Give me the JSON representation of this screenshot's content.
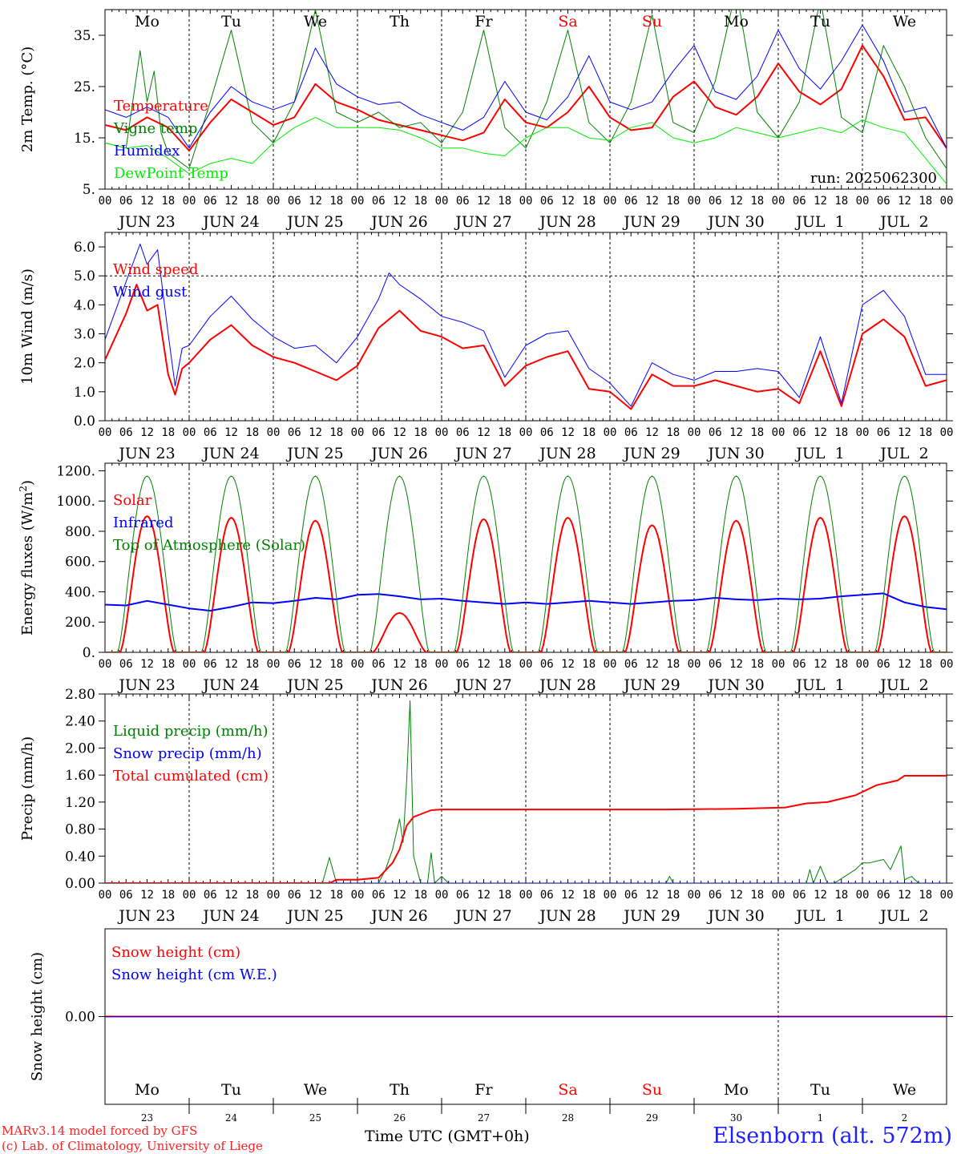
{
  "colors": {
    "red": "#ff0000",
    "blue": "#0000ff",
    "green": "#008000",
    "lime": "#00ee00",
    "grid": "#000000",
    "weekend": "#ff0000"
  },
  "days": {
    "names": [
      "Mo",
      "Tu",
      "We",
      "Th",
      "Fr",
      "Sa",
      "Su",
      "Mo",
      "Tu",
      "We"
    ],
    "dates": [
      "JUN 23",
      "JUN 24",
      "JUN 25",
      "JUN 26",
      "JUN 27",
      "JUN 28",
      "JUN 29",
      "JUN 30",
      "JUL  1",
      "JUL  2"
    ],
    "nums": [
      "23",
      "24",
      "25",
      "26",
      "27",
      "28",
      "29",
      "30",
      "1",
      "2"
    ],
    "weekend_idx": [
      5,
      6
    ],
    "hours": [
      "00",
      "06",
      "12",
      "18"
    ],
    "last_hour": "00"
  },
  "footer": {
    "model": "MARv3.14 model forced by GFS",
    "lab": "(c) Lab. of Climatology, University of Liege",
    "axis_title": "Time UTC (GMT+0h)",
    "station": "Elsenborn (alt. 572m)"
  },
  "chart_data": [
    {
      "type": "line",
      "ylabel": "2m Temp. (°C)",
      "ylim": [
        5,
        40
      ],
      "yticks": [
        5,
        15,
        25,
        35
      ],
      "ytick_labels": [
        "5.",
        "15.",
        "25.",
        "35."
      ],
      "annotation": "run: 2025062300",
      "series": [
        {
          "name": "Temperature",
          "color": "red",
          "width": 2,
          "x": [
            0,
            6,
            12,
            18,
            24,
            30,
            36,
            42,
            48,
            54,
            60,
            66,
            72,
            78,
            84,
            90,
            96,
            102,
            108,
            114,
            120,
            126,
            132,
            138,
            144,
            150,
            156,
            162,
            168,
            174,
            180,
            186,
            192,
            198,
            204,
            210,
            216,
            222,
            228,
            234,
            240
          ],
          "values": [
            17.5,
            16.5,
            19,
            17,
            12.5,
            18,
            22.5,
            20,
            17.5,
            19,
            25.5,
            22,
            20.5,
            18.5,
            17.5,
            16.5,
            15.5,
            14.5,
            16,
            22.5,
            18,
            17,
            20,
            25,
            19,
            16.5,
            17,
            23,
            26,
            21,
            19.5,
            23,
            29.5,
            24,
            21.5,
            24.5,
            33,
            27,
            18.5,
            19,
            13
          ]
        },
        {
          "name": "Vigne temp",
          "color": "green",
          "width": 1,
          "x": [
            0,
            6,
            10,
            12,
            14,
            16,
            18,
            24,
            30,
            36,
            42,
            48,
            54,
            60,
            66,
            72,
            78,
            84,
            90,
            96,
            102,
            108,
            114,
            120,
            126,
            132,
            138,
            144,
            150,
            156,
            162,
            168,
            174,
            180,
            186,
            192,
            198,
            204,
            210,
            216,
            222,
            228,
            234,
            240
          ],
          "values": [
            14,
            13,
            32,
            22,
            28,
            16,
            12,
            9,
            22,
            36,
            18,
            14,
            22,
            40,
            20,
            18,
            20,
            17,
            18,
            14,
            20,
            36,
            17,
            13,
            22,
            36,
            18,
            14,
            22,
            39,
            18,
            16,
            26,
            44,
            20,
            15,
            22,
            42,
            19,
            16,
            33,
            25,
            15,
            9
          ]
        },
        {
          "name": "Humidex",
          "color": "blue",
          "width": 1,
          "x": [
            0,
            6,
            12,
            18,
            24,
            30,
            36,
            42,
            48,
            54,
            60,
            66,
            72,
            78,
            84,
            90,
            96,
            102,
            108,
            114,
            120,
            126,
            132,
            138,
            144,
            150,
            156,
            162,
            168,
            174,
            180,
            186,
            192,
            198,
            204,
            210,
            216,
            222,
            228,
            234,
            240
          ],
          "values": [
            20.5,
            19,
            21,
            19,
            13,
            20,
            25,
            22,
            20.5,
            22,
            32.5,
            25.5,
            23,
            21.5,
            22,
            19.5,
            18,
            16.5,
            19,
            26,
            20,
            18.5,
            23,
            31,
            22,
            20.5,
            22,
            28,
            33,
            24,
            22.5,
            27,
            36,
            28.5,
            24.5,
            30,
            37,
            30,
            20,
            21,
            13
          ]
        },
        {
          "name": "DewPoint Temp",
          "color": "lime",
          "width": 1,
          "x": [
            0,
            6,
            12,
            18,
            24,
            30,
            36,
            42,
            48,
            54,
            60,
            66,
            72,
            78,
            84,
            90,
            96,
            102,
            108,
            114,
            120,
            126,
            132,
            138,
            144,
            150,
            156,
            162,
            168,
            174,
            180,
            186,
            192,
            198,
            204,
            210,
            216,
            222,
            228,
            234,
            240
          ],
          "values": [
            14,
            13,
            13.5,
            11,
            8,
            10,
            11,
            10,
            14,
            17,
            19,
            17,
            17,
            17,
            16.5,
            15,
            13,
            13,
            12,
            11.5,
            15,
            17,
            17,
            15,
            14.5,
            17,
            18,
            15,
            14,
            15,
            17,
            16,
            15,
            16,
            17,
            16,
            18.5,
            17,
            16,
            11,
            6
          ]
        }
      ]
    },
    {
      "type": "line",
      "ylabel": "10m Wind (m/s)",
      "ylim": [
        0,
        6.5
      ],
      "yticks": [
        0,
        1,
        2,
        3,
        4,
        5,
        6
      ],
      "ytick_labels": [
        "0.0",
        "1.0",
        "2.0",
        "3.0",
        "4.0",
        "5.0",
        "6.0"
      ],
      "hline": 5.0,
      "series": [
        {
          "name": "Wind speed",
          "color": "red",
          "width": 2,
          "x": [
            0,
            6,
            9,
            12,
            15,
            18,
            20,
            22,
            24,
            30,
            36,
            42,
            48,
            54,
            60,
            66,
            72,
            78,
            84,
            90,
            96,
            102,
            108,
            114,
            120,
            126,
            132,
            138,
            144,
            150,
            156,
            162,
            168,
            174,
            180,
            186,
            192,
            198,
            204,
            210,
            216,
            222,
            228,
            234,
            240
          ],
          "values": [
            2.1,
            3.7,
            4.7,
            3.8,
            4,
            1.6,
            0.9,
            1.8,
            2.0,
            2.8,
            3.3,
            2.6,
            2.2,
            2.0,
            1.7,
            1.4,
            1.9,
            3.2,
            3.8,
            3.1,
            2.9,
            2.5,
            2.6,
            1.2,
            1.9,
            2.2,
            2.4,
            1.1,
            1.0,
            0.4,
            1.6,
            1.2,
            1.2,
            1.4,
            1.2,
            1.0,
            1.1,
            0.6,
            2.4,
            0.5,
            3.0,
            3.5,
            2.9,
            1.2,
            1.4
          ]
        },
        {
          "name": "Wind gust",
          "color": "blue",
          "width": 1,
          "x": [
            0,
            6,
            10,
            12,
            15,
            18,
            20,
            22,
            24,
            30,
            36,
            42,
            48,
            54,
            60,
            66,
            72,
            78,
            81,
            84,
            90,
            96,
            102,
            108,
            114,
            120,
            126,
            132,
            138,
            144,
            150,
            156,
            162,
            168,
            174,
            180,
            186,
            192,
            198,
            204,
            210,
            216,
            222,
            228,
            234,
            240
          ],
          "values": [
            2.8,
            4.8,
            6.1,
            5.4,
            5.9,
            3.0,
            1.2,
            2.5,
            2.6,
            3.6,
            4.3,
            3.5,
            2.9,
            2.5,
            2.6,
            2.0,
            2.9,
            4.2,
            5.1,
            4.7,
            4.2,
            3.6,
            3.4,
            3.1,
            1.5,
            2.6,
            3.0,
            3.1,
            1.8,
            1.3,
            0.5,
            2.0,
            1.6,
            1.4,
            1.7,
            1.7,
            1.8,
            1.7,
            0.8,
            2.9,
            0.6,
            4.0,
            4.5,
            3.6,
            1.6,
            1.6
          ]
        }
      ]
    },
    {
      "type": "line",
      "ylabel": "Energy fluxes (W/m2)",
      "ylim": [
        0,
        1250
      ],
      "yticks": [
        0,
        200,
        400,
        600,
        800,
        1000,
        1200
      ],
      "ytick_labels": [
        "0.",
        "200.",
        "400.",
        "600.",
        "800.",
        "1000.",
        "1200."
      ],
      "series": [
        {
          "name": "Solar",
          "color": "red",
          "width": 2,
          "peaks": [
            900,
            890,
            870,
            260,
            880,
            890,
            840,
            870,
            890,
            900
          ]
        },
        {
          "name": "Infrared",
          "color": "blue",
          "width": 2,
          "x": [
            0,
            6,
            12,
            18,
            24,
            30,
            36,
            42,
            48,
            54,
            60,
            66,
            72,
            78,
            84,
            90,
            96,
            102,
            108,
            114,
            120,
            126,
            132,
            138,
            144,
            150,
            156,
            162,
            168,
            174,
            180,
            186,
            192,
            198,
            204,
            210,
            216,
            222,
            228,
            234,
            240
          ],
          "values": [
            315,
            310,
            340,
            315,
            290,
            275,
            300,
            330,
            325,
            340,
            360,
            350,
            380,
            385,
            370,
            350,
            355,
            340,
            330,
            320,
            330,
            320,
            330,
            340,
            330,
            320,
            330,
            340,
            345,
            360,
            350,
            345,
            355,
            350,
            355,
            370,
            380,
            390,
            330,
            300,
            285
          ]
        },
        {
          "name": "Top of Atmosphere (Solar)",
          "color": "green",
          "width": 1,
          "peak": 1165
        }
      ]
    },
    {
      "type": "line",
      "ylabel": "Precip (mm/h)",
      "ylim": [
        0,
        2.8
      ],
      "yticks": [
        0,
        0.4,
        0.8,
        1.2,
        1.6,
        2.0,
        2.4,
        2.8
      ],
      "ytick_labels": [
        "0.00",
        "0.40",
        "0.80",
        "1.20",
        "1.60",
        "2.00",
        "2.40",
        "2.80"
      ],
      "series": [
        {
          "name": "Liquid precip (mm/h)",
          "color": "green",
          "width": 1,
          "x": [
            0,
            62,
            64,
            66,
            68,
            78,
            80,
            82,
            84,
            85,
            86,
            87,
            88,
            90,
            92,
            93,
            94,
            96,
            98,
            100,
            120,
            160,
            161,
            162,
            200,
            201,
            202,
            204,
            206,
            208,
            214,
            216,
            218,
            222,
            224,
            227,
            228,
            230,
            232,
            234,
            240
          ],
          "values": [
            0,
            0,
            0.38,
            0,
            0,
            0,
            0.2,
            0.5,
            0.95,
            0.6,
            1.5,
            2.7,
            0.4,
            0,
            0,
            0.45,
            0,
            0.1,
            0,
            0,
            0,
            0,
            0.1,
            0,
            0,
            0.2,
            0,
            0.25,
            0,
            0,
            0.2,
            0.3,
            0.3,
            0.35,
            0.2,
            0.55,
            0.05,
            0.1,
            0,
            0,
            0
          ]
        },
        {
          "name": "Snow precip (mm/h)",
          "color": "blue",
          "width": 1,
          "x": [
            0,
            240
          ],
          "values": [
            0,
            0
          ]
        },
        {
          "name": "Total cumulated (cm)",
          "color": "red",
          "width": 2,
          "x": [
            0,
            64,
            66,
            72,
            78,
            82,
            84,
            86,
            88,
            90,
            93,
            96,
            160,
            180,
            194,
            200,
            206,
            214,
            220,
            226,
            228,
            240
          ],
          "values": [
            0,
            0,
            0.05,
            0.05,
            0.08,
            0.3,
            0.5,
            0.85,
            0.98,
            1.02,
            1.08,
            1.09,
            1.09,
            1.1,
            1.12,
            1.18,
            1.2,
            1.3,
            1.45,
            1.52,
            1.59,
            1.59
          ]
        }
      ]
    },
    {
      "type": "line",
      "ylabel": "Snow height (cm)",
      "ylim": [
        -1,
        1
      ],
      "yticks": [
        0
      ],
      "ytick_labels": [
        "0.00"
      ],
      "series": [
        {
          "name": "Snow height (cm)",
          "color": "red",
          "width": 2,
          "x": [
            0,
            240
          ],
          "values": [
            0,
            0
          ]
        },
        {
          "name": "Snow height (cm W.E.)",
          "color": "blue",
          "width": 1,
          "x": [
            0,
            240
          ],
          "values": [
            0,
            0
          ]
        }
      ]
    }
  ]
}
